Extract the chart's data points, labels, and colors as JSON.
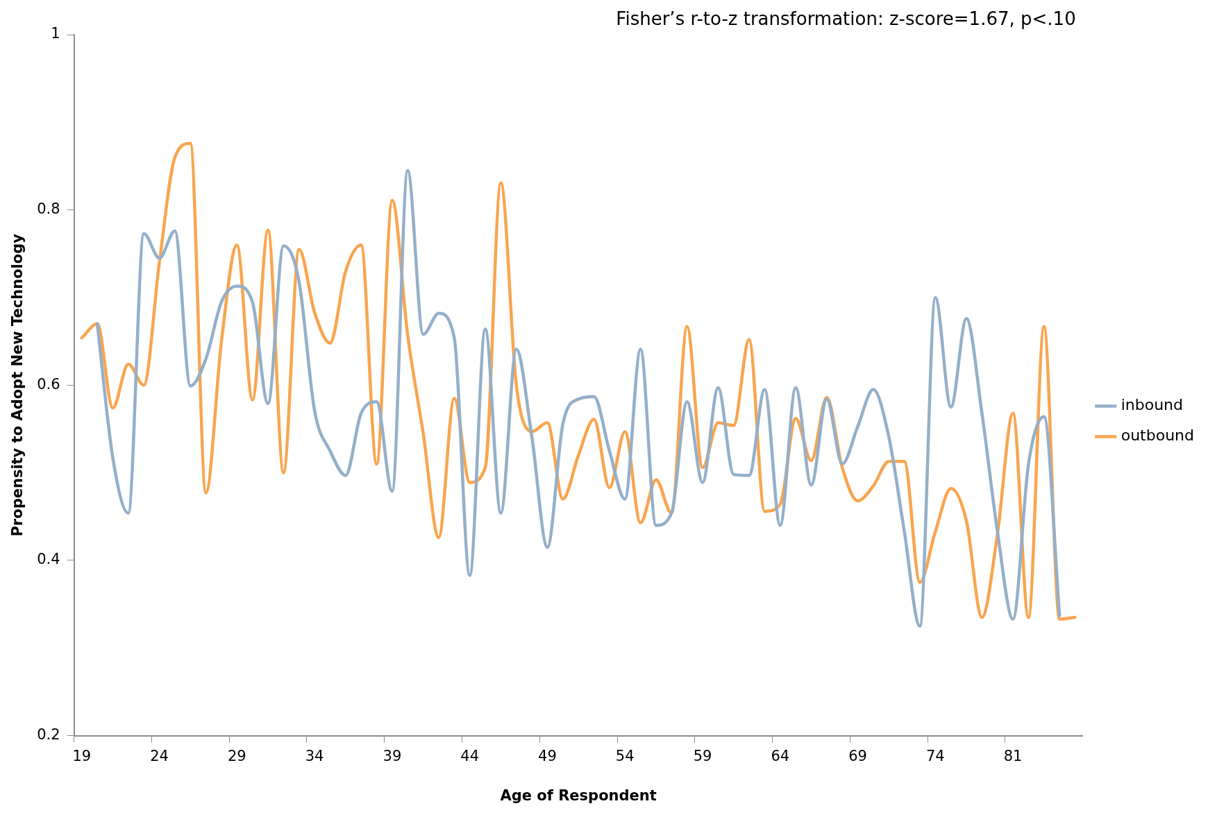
{
  "chart_data": {
    "type": "line",
    "annotations": [
      "Fisher’s r-to-z transformation: z-score=1.67, p<.10"
    ],
    "xlabel": "Age of Respondent",
    "ylabel": "Propensity to Adopt New Technology",
    "categories": [
      "19",
      null,
      null,
      null,
      null,
      "24",
      null,
      null,
      null,
      null,
      "29",
      null,
      null,
      null,
      null,
      "34",
      null,
      null,
      null,
      null,
      "39",
      null,
      null,
      null,
      null,
      "44",
      null,
      null,
      null,
      null,
      "49",
      null,
      null,
      null,
      null,
      "54",
      null,
      null,
      null,
      null,
      "59",
      null,
      null,
      null,
      null,
      "64",
      null,
      null,
      null,
      null,
      "69",
      null,
      null,
      null,
      null,
      "74",
      null,
      null,
      null,
      null,
      "81",
      null,
      null,
      null,
      null
    ],
    "series": [
      {
        "name": "inbound",
        "color": "#94afc9",
        "values": [
          null,
          0.67,
          0.517,
          0.454,
          0.773,
          0.745,
          0.776,
          0.599,
          0.63,
          0.695,
          0.713,
          0.695,
          0.579,
          0.759,
          0.718,
          0.571,
          0.525,
          0.497,
          0.568,
          0.581,
          0.479,
          0.845,
          0.658,
          0.682,
          0.654,
          0.383,
          0.664,
          0.454,
          0.641,
          0.541,
          0.415,
          0.556,
          0.584,
          0.587,
          0.525,
          0.47,
          0.641,
          0.44,
          0.454,
          0.581,
          0.489,
          0.597,
          0.498,
          0.497,
          0.595,
          0.44,
          0.597,
          0.486,
          0.584,
          0.51,
          0.553,
          0.595,
          0.541,
          0.433,
          0.325,
          0.7,
          0.575,
          0.676,
          0.568,
          0.433,
          0.333,
          0.51,
          0.564,
          0.337,
          null
        ]
      },
      {
        "name": "outbound",
        "color": "#f9a54f",
        "values": [
          0.654,
          0.67,
          0.574,
          0.624,
          0.6,
          0.74,
          0.86,
          0.876,
          0.477,
          0.65,
          0.76,
          0.583,
          0.777,
          0.5,
          0.755,
          0.683,
          0.648,
          0.73,
          0.76,
          0.51,
          0.811,
          0.657,
          0.545,
          0.426,
          0.585,
          0.489,
          0.506,
          0.831,
          0.6,
          0.547,
          0.557,
          0.47,
          0.52,
          0.561,
          0.483,
          0.547,
          0.443,
          0.492,
          0.454,
          0.667,
          0.506,
          0.557,
          0.554,
          0.652,
          0.456,
          0.464,
          0.562,
          0.514,
          0.586,
          0.506,
          0.468,
          0.485,
          0.513,
          0.513,
          0.375,
          0.433,
          0.482,
          0.445,
          0.335,
          0.43,
          0.568,
          0.335,
          0.667,
          0.333,
          0.335
        ]
      }
    ],
    "ylim": [
      0.2,
      1
    ],
    "yticks": [
      0.2,
      0.4,
      0.6,
      0.8,
      1
    ],
    "legend": "right"
  }
}
